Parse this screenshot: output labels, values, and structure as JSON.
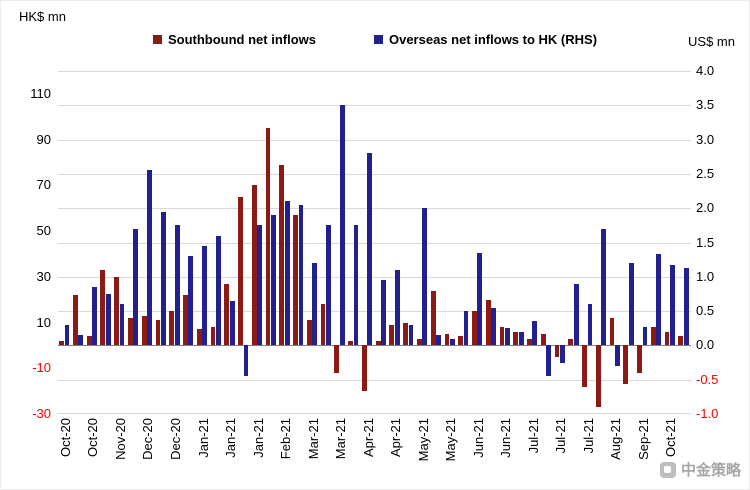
{
  "watermark": {
    "text": "中金策略"
  },
  "chart_data": {
    "type": "bar",
    "title": "",
    "ylabel_left": "HK$ mn",
    "ylabel_right": "US$ mn",
    "legend_position": "top",
    "grid": true,
    "left_axis": {
      "ticks": [
        110,
        90,
        70,
        50,
        30,
        10,
        -10,
        -30
      ],
      "min": -30
    },
    "right_axis": {
      "ticks": [
        4.0,
        3.5,
        3.0,
        2.5,
        2.0,
        1.5,
        1.0,
        0.5,
        0.0,
        -0.5,
        -1.0
      ],
      "min": -1.0,
      "max": 4.0
    },
    "negative_tick_color": "#ff0000",
    "x_labels": [
      "Oct-20",
      "",
      "Oct-20",
      "",
      "Nov-20",
      "",
      "Dec-20",
      "",
      "Dec-20",
      "",
      "Jan-21",
      "",
      "Jan-21",
      "",
      "Jan-21",
      "",
      "Feb-21",
      "",
      "Mar-21",
      "",
      "Mar-21",
      "",
      "Apr-21",
      "",
      "Apr-21",
      "",
      "May-21",
      "",
      "May-21",
      "",
      "Jun-21",
      "",
      "Jun-21",
      "",
      "Jul-21",
      "",
      "Jul-21",
      "",
      "Jul-21",
      "",
      "Aug-21",
      "",
      "Sep-21",
      "",
      "Oct-21",
      ""
    ],
    "series": [
      {
        "name": "Southbound net inflows",
        "axis": "left",
        "unit": "HK$ mn",
        "color": "#8B1914",
        "values": [
          2,
          22,
          4,
          33,
          30,
          12,
          13,
          11,
          15,
          22,
          7,
          8,
          27,
          65,
          70,
          95,
          79,
          57,
          11,
          18,
          -12,
          2,
          -20,
          2,
          9,
          10,
          3,
          24,
          5,
          4,
          15,
          20,
          8,
          6,
          3,
          5,
          -5,
          3,
          -18,
          -27,
          12,
          -17,
          -12,
          8,
          6,
          4
        ]
      },
      {
        "name": "Overseas net inflows to HK (RHS)",
        "axis": "right",
        "unit": "US$ mn",
        "color": "#20208F",
        "values": [
          0.3,
          0.15,
          0.85,
          0.75,
          0.6,
          1.7,
          2.55,
          1.95,
          1.75,
          1.3,
          1.45,
          1.6,
          0.65,
          -0.45,
          1.75,
          1.9,
          2.1,
          2.05,
          1.2,
          1.75,
          3.5,
          1.75,
          2.8,
          0.95,
          1.1,
          0.3,
          2.0,
          0.15,
          0.1,
          0.5,
          1.35,
          0.55,
          0.25,
          0.2,
          0.35,
          -0.45,
          -0.25,
          0.9,
          0.6,
          1.7,
          -0.3,
          1.2,
          0.27,
          1.33,
          1.17,
          1.13
        ]
      }
    ]
  }
}
